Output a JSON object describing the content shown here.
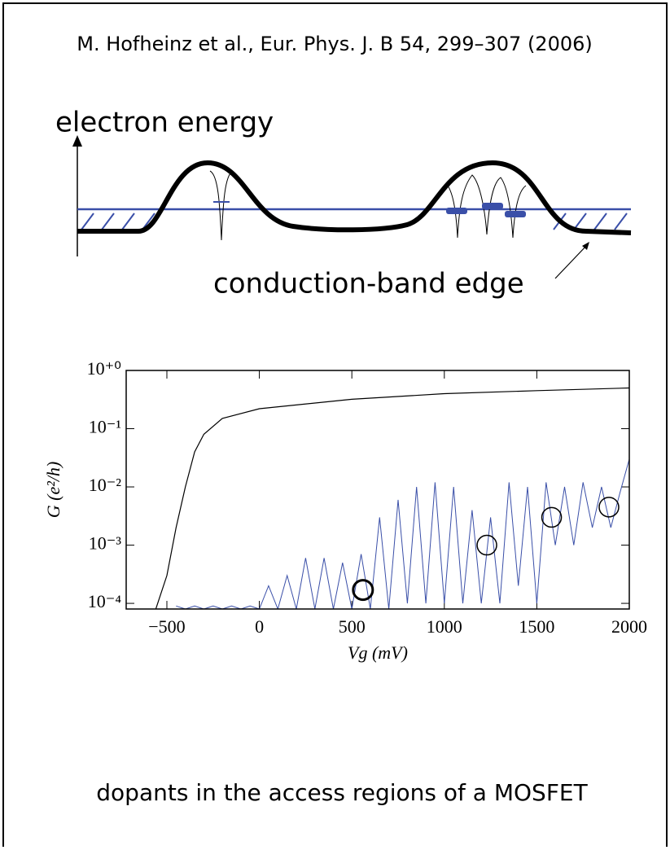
{
  "citation": "M. Hofheinz et al., Eur. Phys. J. B 54, 299–307 (2006)",
  "diagram": {
    "axis_label": "electron energy",
    "curve_label": "conduction-band edge"
  },
  "caption": "dopants in the access regions of a MOSFET",
  "chart_data": {
    "type": "line",
    "ylabel": "G (e²/h)",
    "xlabel": "Vg (mV)",
    "log_y": true,
    "xlim": [
      -720,
      2000
    ],
    "ylim": [
      8e-05,
      1
    ],
    "xticks": [
      {
        "value": -500,
        "label": "−500"
      },
      0,
      500,
      1000,
      1500,
      2000
    ],
    "yticks": [
      {
        "value": 1,
        "label": "10⁺⁰"
      },
      {
        "value": 0.1,
        "label": "10⁻¹"
      },
      {
        "value": 0.01,
        "label": "10⁻²"
      },
      {
        "value": 0.001,
        "label": "10⁻³"
      },
      {
        "value": 0.0001,
        "label": "10⁻⁴"
      }
    ],
    "series": [
      {
        "color": "#000000",
        "x": [
          -560,
          -500,
          -450,
          -400,
          -350,
          -300,
          -200,
          0,
          500,
          1000,
          1500,
          2000
        ],
        "values": [
          8e-05,
          0.0003,
          0.002,
          0.01,
          0.04,
          0.08,
          0.15,
          0.22,
          0.32,
          0.4,
          0.45,
          0.5
        ]
      },
      {
        "color": "#3a4fa8",
        "x": [
          -450,
          -400,
          -350,
          -300,
          -250,
          -200,
          -150,
          -100,
          -50,
          0,
          50,
          100,
          150,
          200,
          250,
          300,
          350,
          400,
          450,
          500,
          550,
          600,
          650,
          700,
          750,
          800,
          850,
          900,
          950,
          1000,
          1050,
          1100,
          1150,
          1200,
          1250,
          1300,
          1350,
          1400,
          1450,
          1500,
          1550,
          1600,
          1650,
          1700,
          1750,
          1800,
          1850,
          1900,
          1950,
          2000
        ],
        "values": [
          9e-05,
          8e-05,
          9e-05,
          8e-05,
          9e-05,
          8e-05,
          9e-05,
          8e-05,
          9e-05,
          8e-05,
          0.0002,
          8e-05,
          0.0003,
          8e-05,
          0.0006,
          8e-05,
          0.0006,
          8e-05,
          0.0005,
          8e-05,
          0.0007,
          8e-05,
          0.003,
          8e-05,
          0.006,
          0.0001,
          0.01,
          0.0001,
          0.012,
          0.0001,
          0.01,
          0.0001,
          0.004,
          0.0001,
          0.003,
          0.0001,
          0.012,
          0.0002,
          0.01,
          0.0001,
          0.012,
          0.001,
          0.01,
          0.001,
          0.012,
          0.002,
          0.01,
          0.002,
          0.008,
          0.03
        ]
      }
    ],
    "circles": {
      "x": [
        560,
        1230,
        1580,
        1890
      ],
      "values": [
        0.00017,
        0.001,
        0.003,
        0.0045
      ]
    }
  }
}
